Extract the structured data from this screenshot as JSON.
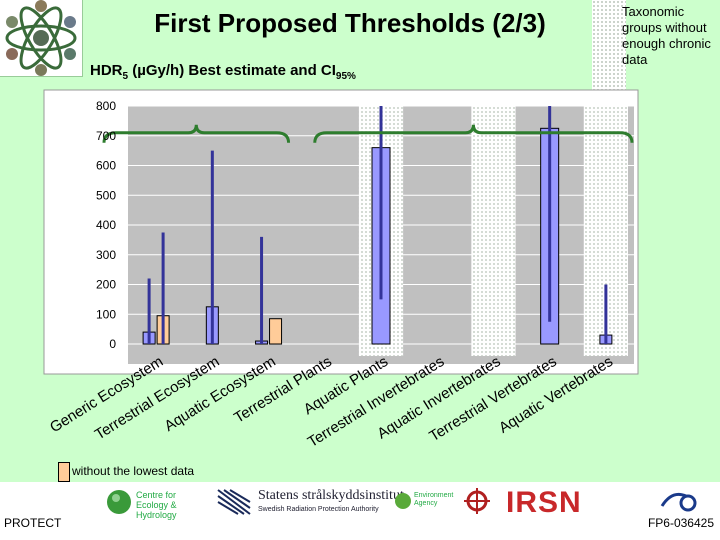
{
  "slide": {
    "title": "First Proposed Thresholds (2/3)",
    "subtitle_main": "HDR",
    "subtitle_sub1": "5",
    "subtitle_rest": " (µGy/h) Best estimate and CI",
    "subtitle_sub2": "95%",
    "note": "Taxonomic groups without enough chronic data",
    "legend_label": "without the lowest data",
    "footer_left": "PROTECT",
    "footer_right": "FP6-036425",
    "logos": {
      "ceh": "Centre for Ecology & Hydrology",
      "ssi": "Statens strålskyddsinstitut",
      "ssi_sub": "Swedish Radiation Protection Authority",
      "ea": "Environment Agency",
      "irsn": "IRSN"
    }
  },
  "colors": {
    "background": "#ccffcc",
    "plot_area": "#c0c0c0",
    "bar_best": "#9999ff",
    "bar_without_lowest": "#ffcc99",
    "ci_line": "#333399",
    "brace": "#2e7d2e"
  },
  "chart_data": {
    "type": "bar",
    "ylim": [
      0,
      800
    ],
    "yticks": [
      0,
      100,
      200,
      300,
      400,
      500,
      600,
      700,
      800
    ],
    "grid": true,
    "categories": [
      "Generic Ecosystem",
      "Terrestrial Ecosystem",
      "Aquatic Ecosystem",
      "Terrestrial Plants",
      "Aquatic Plants",
      "Terrestrial Invertebrates",
      "Aquatic Invertebrates",
      "Terrestrial Vertebrates",
      "Aquatic Vertebrates"
    ],
    "without_enough_chronic_data": [
      "Aquatic Plants",
      "Aquatic Invertebrates",
      "Aquatic Vertebrates"
    ],
    "series": [
      {
        "key": "best",
        "values": [
          40,
          125,
          10,
          null,
          660,
          null,
          null,
          725,
          30
        ],
        "ci_low": [
          0,
          0,
          0,
          null,
          150,
          null,
          null,
          75,
          0
        ],
        "ci_high": [
          220,
          650,
          360,
          null,
          820,
          null,
          null,
          820,
          200
        ]
      },
      {
        "key": "without_lowest",
        "name": "without the lowest data",
        "values": [
          95,
          null,
          85,
          null,
          null,
          null,
          null,
          null,
          null
        ],
        "ci_high": [
          375,
          null,
          null,
          null,
          null,
          null,
          null,
          null,
          null
        ]
      }
    ]
  }
}
